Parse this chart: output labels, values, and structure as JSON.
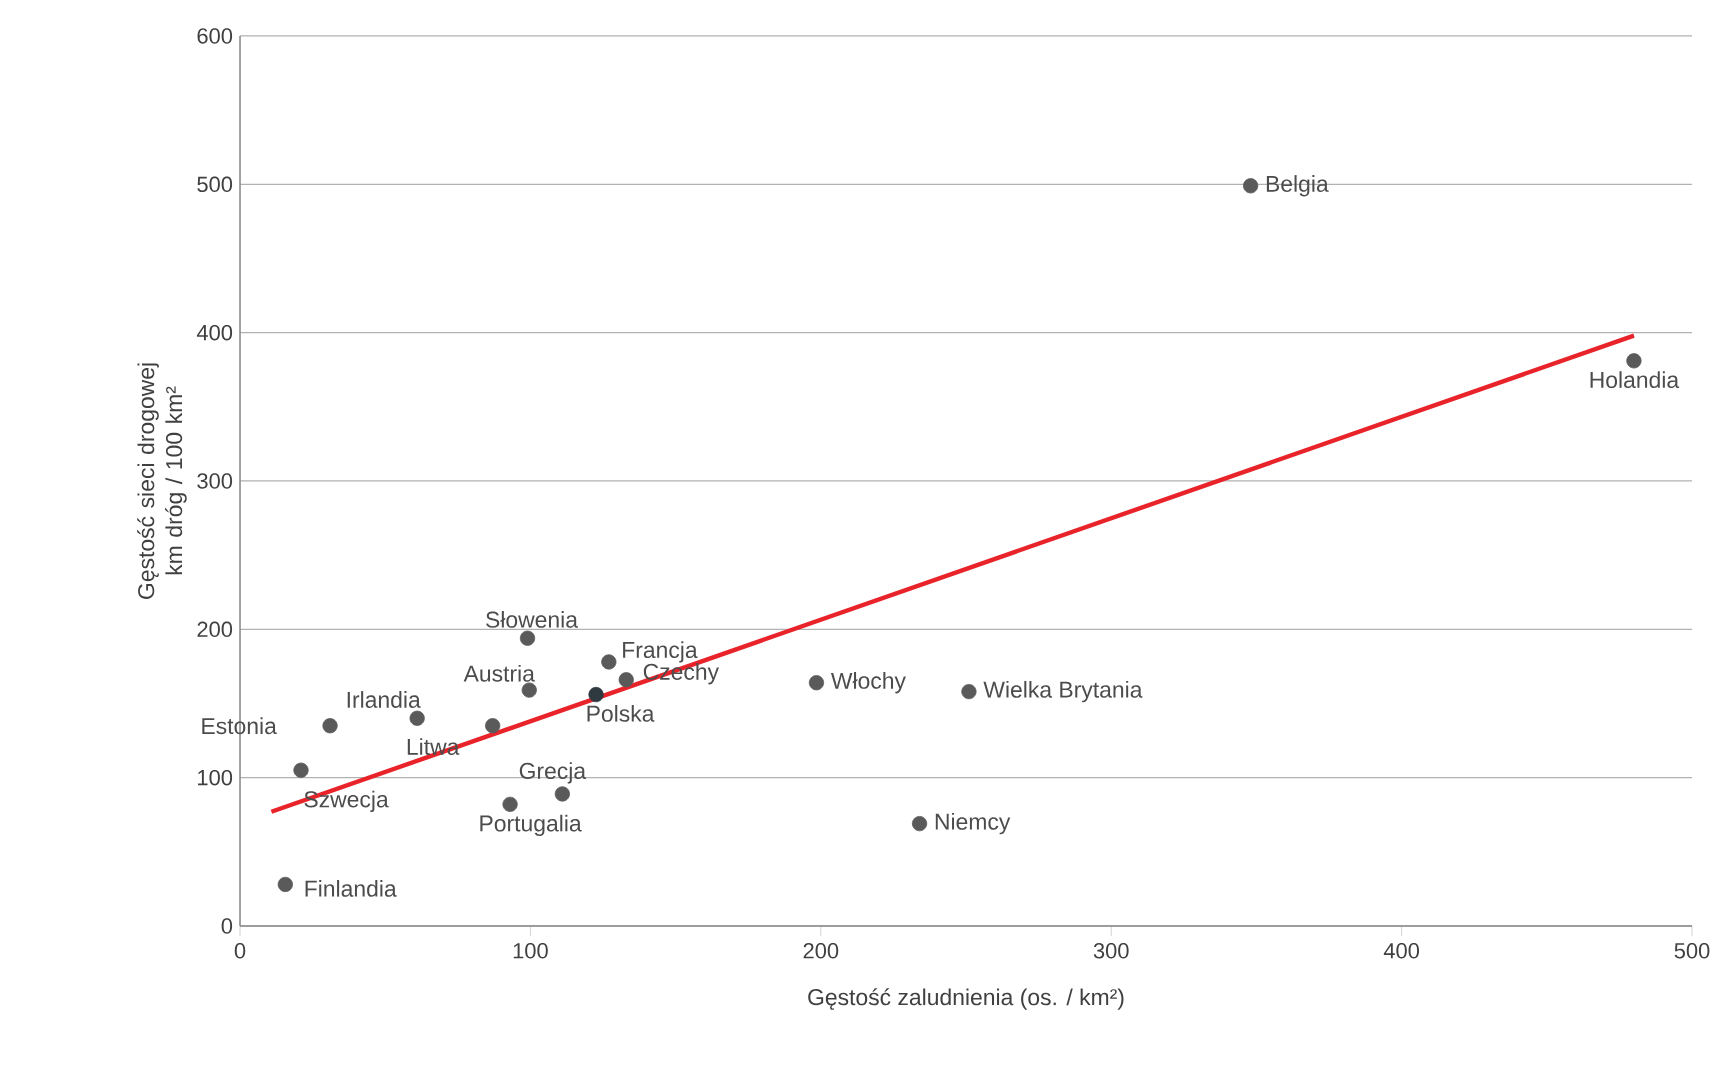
{
  "chart_data": {
    "type": "scatter",
    "xlabel": "Gęstość zaludnienia (os. / km²)",
    "ylabel": "Gęstość sieci drogowej km dróg / 100 km²",
    "xlim": [
      0,
      500
    ],
    "ylim": [
      0,
      600
    ],
    "xticks": [
      0,
      100,
      200,
      300,
      400,
      500
    ],
    "yticks": [
      0,
      100,
      200,
      300,
      400,
      500,
      600
    ],
    "grid": "y",
    "series": [
      {
        "marker": "circle",
        "x": [
          15.6,
          21,
          31,
          61,
          87,
          99,
          99.6,
          93,
          111,
          122.6,
          127,
          133,
          198.5,
          234,
          251,
          348,
          480
        ],
        "values": [
          28,
          105,
          135,
          140,
          135,
          194,
          159,
          82,
          89,
          156,
          178,
          166,
          164,
          69,
          158,
          499,
          381
        ],
        "colors": [
          "#5a5a5a",
          "#5a5a5a",
          "#5a5a5a",
          "#5a5a5a",
          "#5a5a5a",
          "#5a5a5a",
          "#5a5a5a",
          "#5a5a5a",
          "#5a5a5a",
          "#2e3a40",
          "#5a5a5a",
          "#5a5a5a",
          "#5a5a5a",
          "#5a5a5a",
          "#5a5a5a",
          "#5a5a5a",
          "#5a5a5a"
        ]
      },
      {
        "type": "line",
        "x": [
          10.8,
          480
        ],
        "values": [
          77,
          398
        ],
        "color": "#e8232a",
        "line_style": "solid",
        "marker": "none"
      }
    ],
    "annotations": [
      {
        "text": "Finlandia",
        "x": 15.6,
        "y": 28
      },
      {
        "text": "Szwecja",
        "x": 21,
        "y": 105
      },
      {
        "text": "Estonia",
        "x": 31,
        "y": 135
      },
      {
        "text": "Irlandia",
        "x": 61,
        "y": 140
      },
      {
        "text": "Litwa",
        "x": 87,
        "y": 135
      },
      {
        "text": "Słowenia",
        "x": 99,
        "y": 194
      },
      {
        "text": "Austria",
        "x": 99.6,
        "y": 159
      },
      {
        "text": "Portugalia",
        "x": 93,
        "y": 82
      },
      {
        "text": "Grecja",
        "x": 111,
        "y": 89
      },
      {
        "text": "Polska",
        "x": 122.6,
        "y": 156
      },
      {
        "text": "Francja",
        "x": 127,
        "y": 178
      },
      {
        "text": "Czechy",
        "x": 133,
        "y": 166
      },
      {
        "text": "Włochy",
        "x": 198.5,
        "y": 164
      },
      {
        "text": "Niemcy",
        "x": 234,
        "y": 69
      },
      {
        "text": "Wielka Brytania",
        "x": 251,
        "y": 158
      },
      {
        "text": "Belgia",
        "x": 348,
        "y": 499
      },
      {
        "text": "Holandia",
        "x": 480,
        "y": 381
      }
    ]
  }
}
